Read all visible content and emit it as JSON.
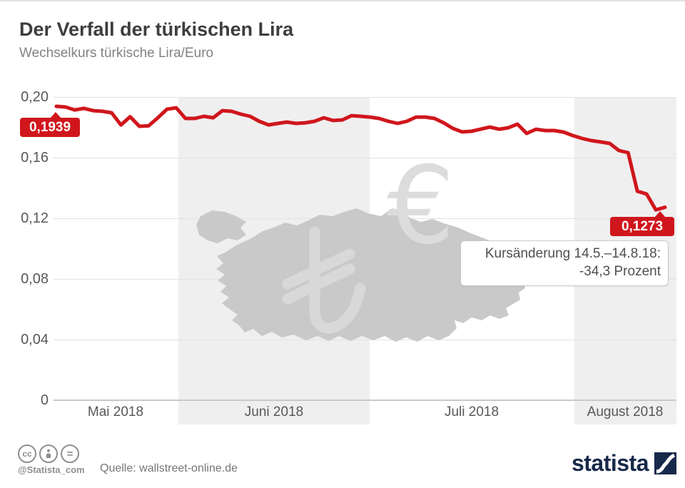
{
  "header": {
    "title": "Der Verfall der türkischen Lira",
    "subtitle": "Wechselkurs türkische Lira/Euro"
  },
  "chart_data": {
    "type": "line",
    "title": "Der Verfall der türkischen Lira",
    "subtitle": "Wechselkurs türkische Lira/Euro",
    "ylabel": "",
    "xlabel": "",
    "ylim": [
      0,
      0.2
    ],
    "grid": true,
    "y_tick_labels": [
      "0,20",
      "0,16",
      "0,12",
      "0,08",
      "0,04",
      "0"
    ],
    "y_tick_values": [
      0.2,
      0.16,
      0.12,
      0.08,
      0.04,
      0
    ],
    "x_tick_labels": [
      "Mai 2018",
      "Juni 2018",
      "Juli 2018",
      "August 2018"
    ],
    "start_label": "0,1939",
    "end_label": "0,1273",
    "start_value": 0.1939,
    "end_value": 0.1273,
    "change_percent_label": "-34,3 Prozent",
    "series": [
      {
        "name": "Wechselkurs türkische Lira/Euro",
        "color": "#d0161c",
        "values": [
          0.1939,
          0.1934,
          0.1915,
          0.1925,
          0.191,
          0.1906,
          0.1896,
          0.1816,
          0.187,
          0.1807,
          0.181,
          0.1863,
          0.192,
          0.1929,
          0.1859,
          0.1859,
          0.1873,
          0.1863,
          0.191,
          0.1906,
          0.1887,
          0.1873,
          0.184,
          0.1816,
          0.1826,
          0.1835,
          0.1826,
          0.183,
          0.184,
          0.1863,
          0.1845,
          0.1849,
          0.1877,
          0.1873,
          0.1868,
          0.1859,
          0.184,
          0.1826,
          0.184,
          0.1868,
          0.1868,
          0.1859,
          0.183,
          0.1793,
          0.177,
          0.1774,
          0.1788,
          0.1802,
          0.1788,
          0.1797,
          0.1821,
          0.176,
          0.1788,
          0.1779,
          0.1779,
          0.1769,
          0.1746,
          0.1727,
          0.1713,
          0.1704,
          0.1694,
          0.1647,
          0.1633,
          0.1379,
          0.136,
          0.1256,
          0.1273
        ]
      }
    ]
  },
  "annotation": {
    "line1": "Kursänderung 14.5.–14.8.18:",
    "line2": "-34,3 Prozent"
  },
  "watermarks": {
    "euro_symbol": "€",
    "lira_symbol": "₺",
    "map": "turkey-map-silhouette"
  },
  "colors": {
    "line_red": "#d0161c",
    "band_gray": "#efefef",
    "map_gray": "#c9c9c9",
    "brand_navy": "#17294a"
  },
  "footer": {
    "cc_icons": [
      "cc-icon",
      "attribution-icon",
      "no-derivatives-icon"
    ],
    "handle": "@Statista_com",
    "source": "Quelle: wallstreet-online.de",
    "brand": "statista"
  }
}
